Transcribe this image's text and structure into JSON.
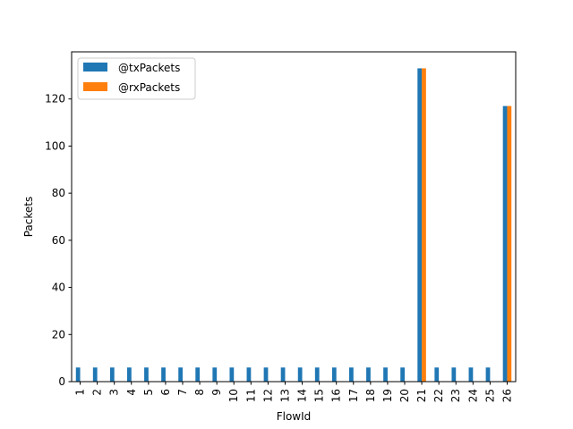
{
  "chart_data": {
    "type": "bar",
    "title": "",
    "xlabel": "FlowId",
    "ylabel": "Packets",
    "ylim": [
      0,
      140
    ],
    "yticks": [
      0,
      20,
      40,
      60,
      80,
      100,
      120
    ],
    "categories": [
      "1",
      "2",
      "3",
      "4",
      "5",
      "6",
      "7",
      "8",
      "9",
      "10",
      "11",
      "12",
      "13",
      "14",
      "15",
      "16",
      "17",
      "18",
      "19",
      "20",
      "21",
      "22",
      "23",
      "24",
      "25",
      "26"
    ],
    "series": [
      {
        "name": "@txPackets",
        "color": "#1f77b4",
        "values": [
          6,
          6,
          6,
          6,
          6,
          6,
          6,
          6,
          6,
          6,
          6,
          6,
          6,
          6,
          6,
          6,
          6,
          6,
          6,
          6,
          133,
          6,
          6,
          6,
          6,
          117
        ]
      },
      {
        "name": "@rxPackets",
        "color": "#ff7f0e",
        "values": [
          0,
          0,
          0,
          0,
          0,
          0,
          0,
          0,
          0,
          0,
          0,
          0,
          0,
          0,
          0,
          0,
          0,
          0,
          0,
          0,
          133,
          0,
          0,
          0,
          0,
          117
        ]
      }
    ],
    "grid": false,
    "legend_position": "top-left"
  }
}
